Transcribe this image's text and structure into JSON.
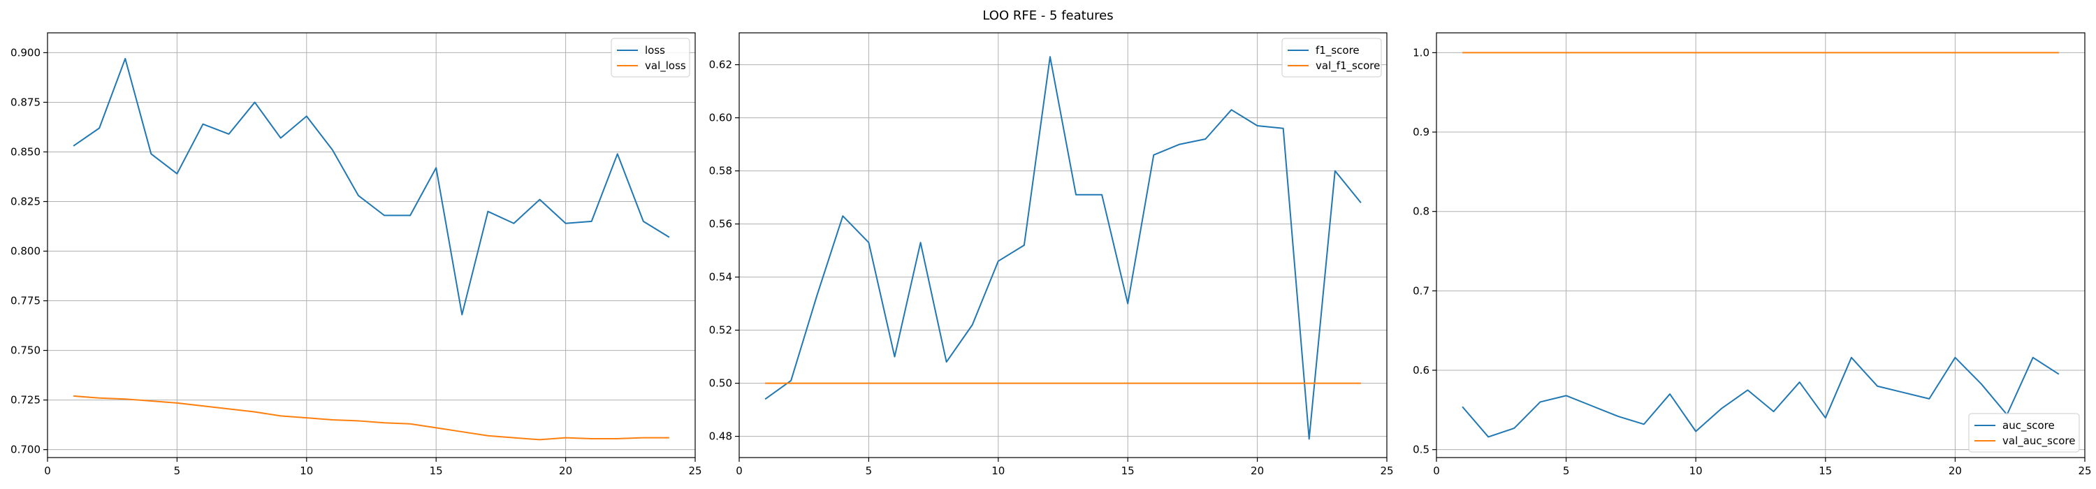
{
  "figure": {
    "title": "LOO RFE - 5 features"
  },
  "chart_data": [
    {
      "type": "line",
      "xlim": [
        0,
        25
      ],
      "ylim": [
        0.696,
        0.91
      ],
      "xticks": [
        0,
        5,
        10,
        15,
        20,
        25
      ],
      "yticks": [
        0.7,
        0.725,
        0.75,
        0.775,
        0.8,
        0.825,
        0.85,
        0.875,
        0.9
      ],
      "ytick_labels": [
        "0.700",
        "0.725",
        "0.750",
        "0.775",
        "0.800",
        "0.825",
        "0.850",
        "0.875",
        "0.900"
      ],
      "grid": true,
      "legend": "upper right",
      "x": [
        1,
        2,
        3,
        4,
        5,
        6,
        7,
        8,
        9,
        10,
        11,
        12,
        13,
        14,
        15,
        16,
        17,
        18,
        19,
        20,
        21,
        22,
        23,
        24
      ],
      "series": [
        {
          "name": "loss",
          "color": "#1f77b4",
          "values": [
            0.853,
            0.862,
            0.897,
            0.849,
            0.839,
            0.864,
            0.859,
            0.875,
            0.857,
            0.868,
            0.851,
            0.828,
            0.818,
            0.818,
            0.842,
            0.768,
            0.82,
            0.814,
            0.826,
            0.814,
            0.815,
            0.849,
            0.815,
            0.807
          ]
        },
        {
          "name": "val_loss",
          "color": "#ff7f0e",
          "values": [
            0.727,
            0.726,
            0.7255,
            0.7245,
            0.7235,
            0.722,
            0.7205,
            0.719,
            0.717,
            0.716,
            0.715,
            0.7145,
            0.7135,
            0.713,
            0.711,
            0.709,
            0.707,
            0.706,
            0.705,
            0.706,
            0.7055,
            0.7055,
            0.706,
            0.706
          ]
        }
      ]
    },
    {
      "type": "line",
      "xlim": [
        0,
        25
      ],
      "ylim": [
        0.472,
        0.632
      ],
      "xticks": [
        0,
        5,
        10,
        15,
        20,
        25
      ],
      "yticks": [
        0.48,
        0.5,
        0.52,
        0.54,
        0.56,
        0.58,
        0.6,
        0.62
      ],
      "ytick_labels": [
        "0.48",
        "0.50",
        "0.52",
        "0.54",
        "0.56",
        "0.58",
        "0.60",
        "0.62"
      ],
      "grid": true,
      "legend": "upper right",
      "x": [
        1,
        2,
        3,
        4,
        5,
        6,
        7,
        8,
        9,
        10,
        11,
        12,
        13,
        14,
        15,
        16,
        17,
        18,
        19,
        20,
        21,
        22,
        23,
        24
      ],
      "series": [
        {
          "name": "f1_score",
          "color": "#1f77b4",
          "values": [
            0.494,
            0.501,
            0.533,
            0.563,
            0.553,
            0.51,
            0.553,
            0.508,
            0.522,
            0.546,
            0.552,
            0.623,
            0.571,
            0.571,
            0.53,
            0.586,
            0.59,
            0.592,
            0.603,
            0.597,
            0.596,
            0.479,
            0.58,
            0.568
          ]
        },
        {
          "name": "val_f1_score",
          "color": "#ff7f0e",
          "values": [
            0.5,
            0.5,
            0.5,
            0.5,
            0.5,
            0.5,
            0.5,
            0.5,
            0.5,
            0.5,
            0.5,
            0.5,
            0.5,
            0.5,
            0.5,
            0.5,
            0.5,
            0.5,
            0.5,
            0.5,
            0.5,
            0.5,
            0.5,
            0.5
          ]
        }
      ]
    },
    {
      "type": "line",
      "xlim": [
        0,
        25
      ],
      "ylim": [
        0.49,
        1.025
      ],
      "xticks": [
        0,
        5,
        10,
        15,
        20,
        25
      ],
      "yticks": [
        0.5,
        0.6,
        0.7,
        0.8,
        0.9,
        1.0
      ],
      "ytick_labels": [
        "0.5",
        "0.6",
        "0.7",
        "0.8",
        "0.9",
        "1.0"
      ],
      "grid": true,
      "legend": "lower right",
      "x": [
        1,
        2,
        3,
        4,
        5,
        6,
        7,
        8,
        9,
        10,
        11,
        12,
        13,
        14,
        15,
        16,
        17,
        18,
        19,
        20,
        21,
        22,
        23,
        24
      ],
      "series": [
        {
          "name": "auc_score",
          "color": "#1f77b4",
          "values": [
            0.554,
            0.516,
            0.527,
            0.56,
            0.568,
            0.555,
            0.542,
            0.532,
            0.57,
            0.523,
            0.552,
            0.575,
            0.548,
            0.585,
            0.54,
            0.616,
            0.58,
            0.572,
            0.564,
            0.616,
            0.583,
            0.544,
            0.616,
            0.595
          ]
        },
        {
          "name": "val_auc_score",
          "color": "#ff7f0e",
          "values": [
            1,
            1,
            1,
            1,
            1,
            1,
            1,
            1,
            1,
            1,
            1,
            1,
            1,
            1,
            1,
            1,
            1,
            1,
            1,
            1,
            1,
            1,
            1,
            1
          ]
        }
      ]
    }
  ]
}
